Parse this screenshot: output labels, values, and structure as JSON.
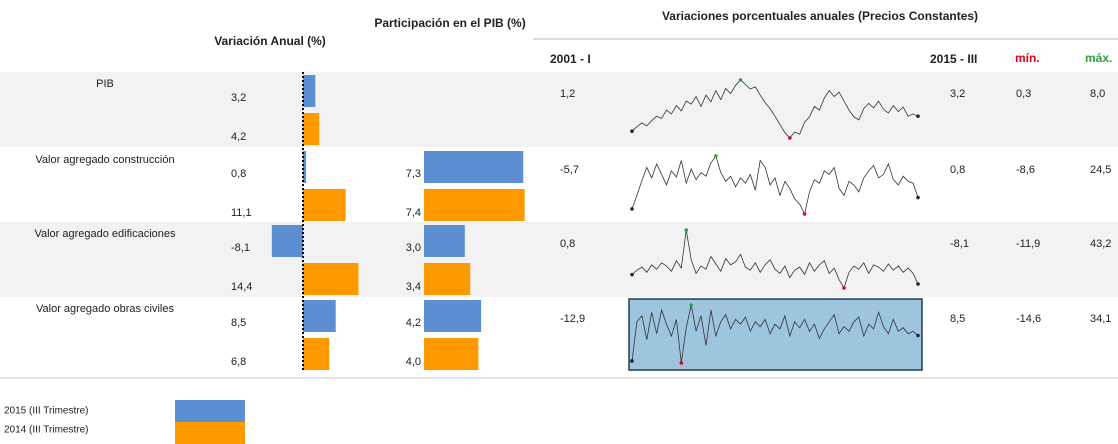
{
  "header": {
    "anual": "Variación Anual (%)",
    "participacion": "Participación en el PIB (%)",
    "variaciones": "Variaciones porcentuales anuales  (Precios Constantes)",
    "start": "2001 - I",
    "end": "2015 - III",
    "min": "mín.",
    "max": "máx."
  },
  "rows": [
    {
      "label": "PIB",
      "anual": [
        {
          "value": 3.2,
          "label": "3,2"
        },
        {
          "value": 4.2,
          "label": "4,2"
        }
      ],
      "participacion": null,
      "first": {
        "value": 1.2,
        "label": "1,2"
      },
      "last": {
        "value": 3.2,
        "label": "3,2"
      },
      "min": {
        "value": 0.3,
        "label": "0,3"
      },
      "max": {
        "value": 8.0,
        "label": "8,0"
      },
      "spark": [
        1.2,
        1.8,
        2.3,
        1.9,
        2.6,
        3.2,
        2.9,
        4.0,
        3.5,
        4.6,
        3.9,
        5.2,
        4.8,
        5.8,
        4.5,
        6.0,
        5.1,
        6.6,
        5.4,
        6.9,
        6.2,
        7.3,
        8.0,
        7.4,
        6.8,
        7.1,
        6.0,
        5.0,
        4.2,
        3.2,
        2.1,
        1.0,
        0.3,
        1.1,
        0.8,
        2.4,
        3.1,
        4.5,
        4.0,
        5.6,
        6.6,
        5.8,
        6.4,
        5.2,
        4.0,
        3.1,
        2.7,
        4.2,
        4.9,
        4.3,
        5.2,
        4.1,
        3.6,
        4.6,
        3.8,
        4.4,
        3.2,
        3.5,
        3.2
      ]
    },
    {
      "label": "Valor agregado construcción",
      "anual": [
        {
          "value": 0.8,
          "label": "0,8"
        },
        {
          "value": 11.1,
          "label": "11,1"
        }
      ],
      "participacion": [
        {
          "value": 7.3,
          "label": "7,3"
        },
        {
          "value": 7.4,
          "label": "7,4"
        }
      ],
      "first": {
        "value": -5.7,
        "label": "-5,7"
      },
      "last": {
        "value": 0.8,
        "label": "0,8"
      },
      "min": {
        "value": -8.6,
        "label": "-8,6"
      },
      "max": {
        "value": 24.5,
        "label": "24,5"
      },
      "spark": [
        -5.7,
        2,
        10.5,
        18,
        12,
        20,
        14,
        8,
        16,
        12.5,
        22,
        9,
        17,
        11,
        15,
        13,
        20.5,
        24.5,
        15,
        10,
        13,
        7,
        12,
        9,
        14,
        5,
        22,
        18,
        8,
        12,
        2,
        10,
        6,
        0,
        -3,
        -8.6,
        4,
        11,
        9,
        16,
        14,
        18,
        6,
        2,
        10,
        8,
        4,
        12,
        16,
        19,
        12,
        14,
        20,
        11,
        8,
        13,
        10,
        9,
        0.8
      ]
    },
    {
      "label": "Valor agregado edificaciones",
      "anual": [
        {
          "value": -8.1,
          "label": "-8,1"
        },
        {
          "value": 14.4,
          "label": "14,4"
        }
      ],
      "participacion": [
        {
          "value": 3.0,
          "label": "3,0"
        },
        {
          "value": 3.4,
          "label": "3,4"
        }
      ],
      "first": {
        "value": 0.8,
        "label": "0,8"
      },
      "last": {
        "value": -8.1,
        "label": "-8,1"
      },
      "min": {
        "value": -11.9,
        "label": "-11,9"
      },
      "max": {
        "value": 43.2,
        "label": "43,2"
      },
      "spark": [
        0.8,
        5,
        8,
        3,
        10,
        6,
        12,
        9,
        4,
        14,
        7,
        43.2,
        15,
        2,
        9,
        6,
        18,
        11,
        4,
        16,
        10,
        13,
        20,
        8,
        5,
        12,
        3,
        10,
        15,
        6,
        2,
        9,
        -2,
        5,
        8,
        1,
        12,
        4,
        10,
        14,
        2,
        7,
        -4,
        -11.9,
        3,
        9,
        6,
        12,
        2,
        10,
        8,
        4,
        11,
        5,
        9,
        3,
        7,
        2,
        -8.1
      ]
    },
    {
      "label": "Valor agregado obras civiles",
      "anual": [
        {
          "value": 8.5,
          "label": "8,5"
        },
        {
          "value": 6.8,
          "label": "6,8"
        }
      ],
      "participacion": [
        {
          "value": 4.2,
          "label": "4,2"
        },
        {
          "value": 4.0,
          "label": "4,0"
        }
      ],
      "first": {
        "value": -12.9,
        "label": "-12,9"
      },
      "last": {
        "value": 8.5,
        "label": "8,5"
      },
      "min": {
        "value": -14.6,
        "label": "-14,6"
      },
      "max": {
        "value": 34.1,
        "label": "34,1"
      },
      "spark": [
        -12.9,
        20,
        25,
        5,
        28,
        10,
        30,
        18,
        8,
        22,
        -14.6,
        15,
        34.1,
        12,
        25,
        0,
        30,
        8,
        20,
        26,
        14,
        22,
        18,
        24,
        12,
        20,
        16,
        22,
        10,
        18,
        14,
        25,
        8,
        20,
        15,
        22,
        12,
        18,
        6,
        14,
        20,
        26,
        10,
        16,
        12,
        20,
        24,
        8,
        18,
        14,
        28,
        16,
        10,
        22,
        12,
        15,
        10,
        12,
        8.5
      ]
    }
  ],
  "legend": [
    {
      "label": "2015 (III Trimestre)",
      "color": "#5b8fd1"
    },
    {
      "label": "2014 (III Trimestre)",
      "color": "#ff9900"
    }
  ]
}
